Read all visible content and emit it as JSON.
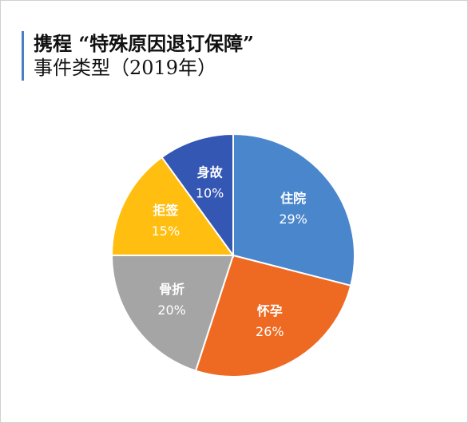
{
  "chart_data": {
    "type": "pie",
    "title": "携程 “特殊原因退订保障”",
    "subtitle": "事件类型（2019年）",
    "categories": [
      "住院",
      "怀孕",
      "骨折",
      "拒签",
      "身故"
    ],
    "values": [
      29,
      26,
      20,
      15,
      10
    ],
    "value_labels": [
      "29%",
      "26%",
      "20%",
      "15%",
      "10%"
    ],
    "colors": [
      "#4a86cc",
      "#ee6a22",
      "#a5a5a5",
      "#ffbe10",
      "#3557b4"
    ],
    "legend": "none"
  }
}
